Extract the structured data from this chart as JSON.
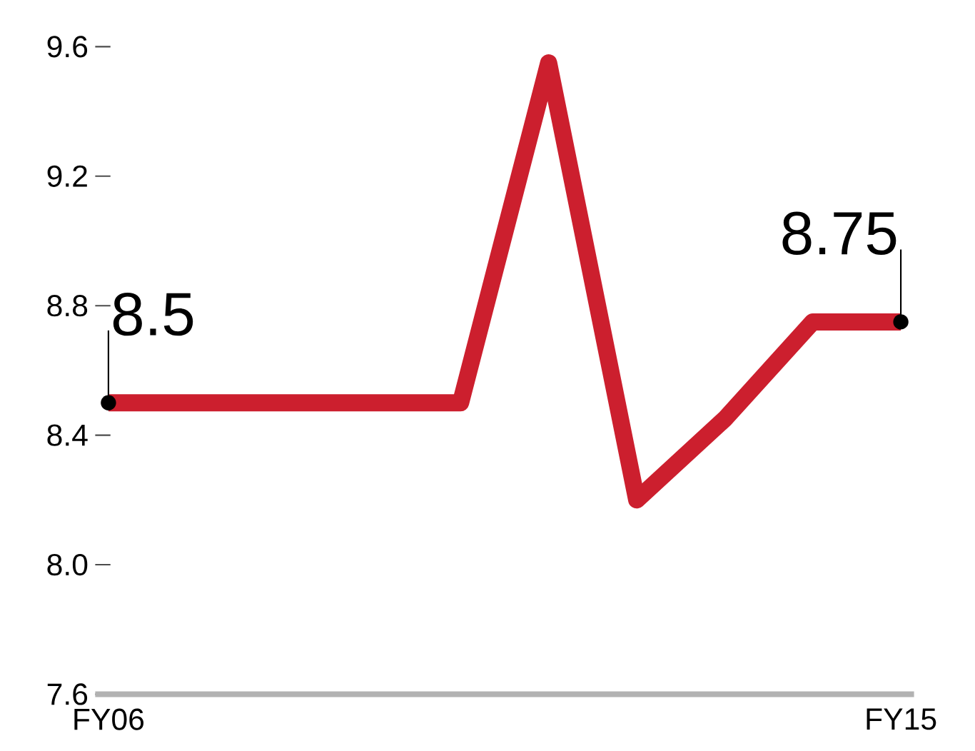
{
  "chart_data": {
    "type": "line",
    "categories": [
      "FY06",
      null,
      null,
      null,
      null,
      null,
      null,
      null,
      null,
      "FY15"
    ],
    "values": [
      8.5,
      8.5,
      8.5,
      8.5,
      8.5,
      9.55,
      8.2,
      8.45,
      8.75,
      8.75
    ],
    "value_labels": [
      "8.5",
      null,
      null,
      null,
      null,
      null,
      null,
      null,
      null,
      "8.75"
    ],
    "color": "#cc1f2e",
    "ylim": [
      7.6,
      9.6
    ],
    "yticks": [
      7.6,
      {
        "value": 8.0,
        "label": "8.0"
      },
      8.4,
      8.8,
      9.2,
      9.6
    ],
    "grid": false
  }
}
